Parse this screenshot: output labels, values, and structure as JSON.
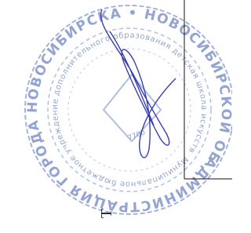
{
  "stamp": {
    "outer_text": "АДМИНИСТРАЦИЯ ГОРОДА НОВОСИБИРСКА • НОВОСИБИРСКОЙ ОБЛАСТИ •",
    "inner_text": "Муниципальное бюджетное учреждение дополнительного образования детская школа искусств № 2",
    "center_text": "7700"
  },
  "document": {
    "letter": "Т"
  }
}
